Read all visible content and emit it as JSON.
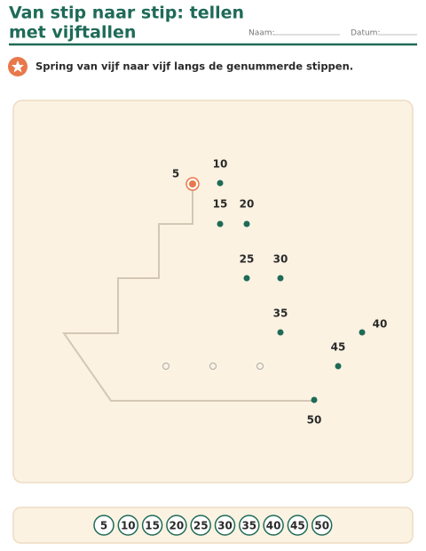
{
  "header": {
    "title_lines": [
      "Van stip naar stip: tellen",
      "met vijftallen"
    ],
    "name_label": "Naam:",
    "date_label": "Datum:"
  },
  "instruction": "Spring van vijf naar vijf langs de genummerde stippen.",
  "dots": [
    "5",
    "10",
    "15",
    "20",
    "25",
    "30",
    "35",
    "40",
    "45",
    "50"
  ],
  "number_strip": [
    "5",
    "10",
    "15",
    "20",
    "25",
    "30",
    "35",
    "40",
    "45",
    "50"
  ]
}
